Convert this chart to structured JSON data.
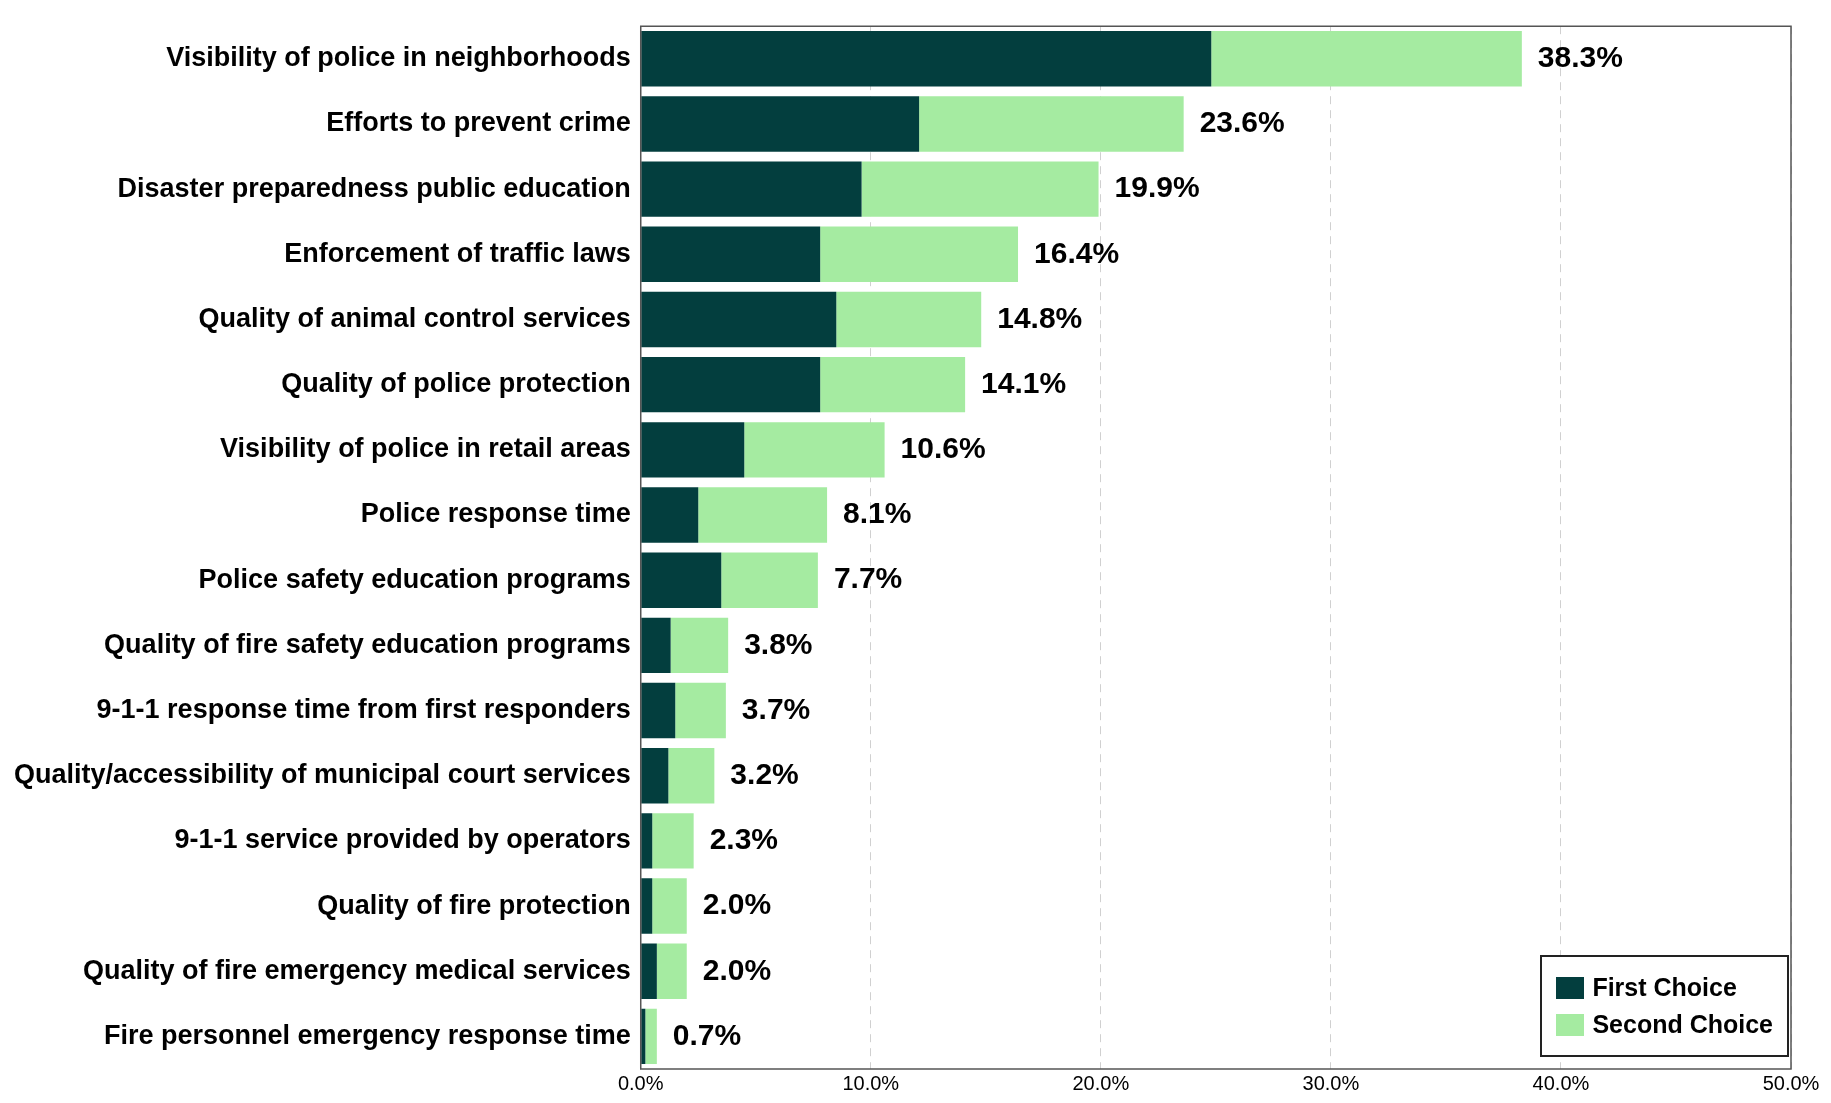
{
  "chart_data": {
    "type": "bar",
    "orientation": "horizontal",
    "stacked": true,
    "categories": [
      "Visibility of police in neighborhoods",
      "Efforts to prevent crime",
      "Disaster preparedness public education",
      "Enforcement of traffic laws",
      "Quality of animal control services",
      "Quality of police protection",
      "Visibility of police in retail areas",
      "Police response time",
      "Police safety education programs",
      "Quality of fire safety education programs",
      "9-1-1 response time from first responders",
      "Quality/accessibility of municipal court services",
      "9-1-1 service provided by operators",
      "Quality of fire protection",
      "Quality of fire emergency medical services",
      "Fire personnel emergency response time"
    ],
    "series": [
      {
        "name": "First Choice",
        "color": "#033e3e",
        "values": [
          24.8,
          12.1,
          9.6,
          7.8,
          8.5,
          7.8,
          4.5,
          2.5,
          3.5,
          1.3,
          1.5,
          1.2,
          0.5,
          0.5,
          0.7,
          0.2
        ]
      },
      {
        "name": "Second Choice",
        "color": "#a5eba1",
        "values": [
          13.5,
          11.5,
          10.3,
          8.6,
          6.3,
          6.3,
          6.1,
          5.6,
          4.2,
          2.5,
          2.2,
          2.0,
          1.8,
          1.5,
          1.3,
          0.5
        ]
      }
    ],
    "totals": [
      "38.3%",
      "23.6%",
      "19.9%",
      "16.4%",
      "14.8%",
      "14.1%",
      "10.6%",
      "8.1%",
      "7.7%",
      "3.8%",
      "3.7%",
      "3.2%",
      "2.3%",
      "2.0%",
      "2.0%",
      "0.7%"
    ],
    "xlim": [
      0,
      50
    ],
    "xticks": [
      {
        "value": 0,
        "label": "0.0%"
      },
      {
        "value": 10,
        "label": "10.0%"
      },
      {
        "value": 20,
        "label": "20.0%"
      },
      {
        "value": 30,
        "label": "30.0%"
      },
      {
        "value": 40,
        "label": "40.0%"
      },
      {
        "value": 50,
        "label": "50.0%"
      }
    ],
    "grid": "x",
    "legend": "bottom right"
  }
}
